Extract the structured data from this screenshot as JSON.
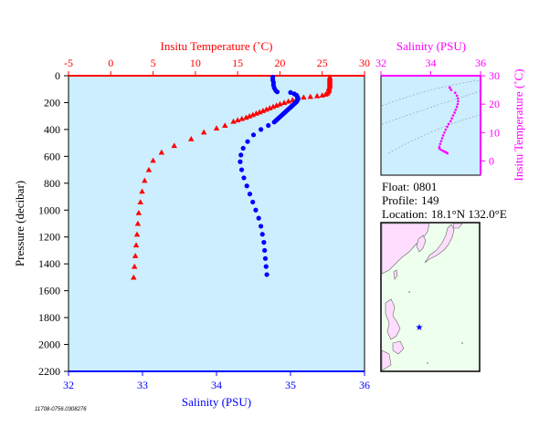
{
  "colors": {
    "temperature": "#ff0000",
    "salinity": "#0000ff",
    "inset": "#ff00ff",
    "plot_bg": "#cceeff",
    "map_sea": "#eeffee",
    "map_land": "#ffddff"
  },
  "info": {
    "float_label": "Float:",
    "float_value": "0801",
    "profile_label": "Profile:",
    "profile_value": "149",
    "location_label": "Location:",
    "location_value": "18.1°N  132.0°E"
  },
  "footnote": "11708-0756.0308276",
  "map": {
    "marker_icon": "star-icon"
  },
  "chart_data": [
    {
      "type": "scatter",
      "ylabel": "Pressure (decibar)",
      "ylim": [
        2200,
        0
      ],
      "yticks": [
        0,
        200,
        400,
        600,
        800,
        1000,
        1200,
        1400,
        1600,
        1800,
        2000,
        2200
      ],
      "top_axis": {
        "label": "Insitu Temperature (˚C)",
        "lim": [
          -5,
          30
        ],
        "ticks": [
          -5,
          0,
          5,
          10,
          15,
          20,
          25,
          30
        ]
      },
      "bottom_axis": {
        "label": "Salinity (PSU)",
        "lim": [
          32,
          36
        ],
        "ticks": [
          32,
          33,
          34,
          35,
          36
        ]
      },
      "grid": false,
      "series": [
        {
          "marker": "triangle",
          "axis": "top",
          "points": [
            [
              25.9,
              10
            ],
            [
              25.9,
              20
            ],
            [
              25.9,
              30
            ],
            [
              25.9,
              40
            ],
            [
              25.9,
              50
            ],
            [
              25.9,
              60
            ],
            [
              25.9,
              70
            ],
            [
              25.9,
              80
            ],
            [
              25.8,
              90
            ],
            [
              25.8,
              100
            ],
            [
              25.8,
              110
            ],
            [
              25.7,
              120
            ],
            [
              25.6,
              130
            ],
            [
              25.4,
              138
            ],
            [
              25.0,
              145
            ],
            [
              24.4,
              150
            ],
            [
              23.6,
              155
            ],
            [
              22.8,
              160
            ],
            [
              22.0,
              170
            ],
            [
              21.5,
              180
            ],
            [
              21.0,
              190
            ],
            [
              20.5,
              200
            ],
            [
              20.0,
              210
            ],
            [
              19.6,
              220
            ],
            [
              19.2,
              230
            ],
            [
              18.8,
              240
            ],
            [
              18.4,
              250
            ],
            [
              18.0,
              260
            ],
            [
              17.6,
              270
            ],
            [
              17.2,
              280
            ],
            [
              16.8,
              290
            ],
            [
              16.4,
              300
            ],
            [
              16.0,
              310
            ],
            [
              15.5,
              320
            ],
            [
              15.0,
              330
            ],
            [
              14.5,
              340
            ],
            [
              13.5,
              370
            ],
            [
              12.5,
              390
            ],
            [
              11.0,
              420
            ],
            [
              9.5,
              470
            ],
            [
              7.5,
              520
            ],
            [
              6.0,
              570
            ],
            [
              5.0,
              630
            ],
            [
              4.5,
              700
            ],
            [
              4.0,
              780
            ],
            [
              3.7,
              860
            ],
            [
              3.5,
              940
            ],
            [
              3.3,
              1020
            ],
            [
              3.2,
              1100
            ],
            [
              3.1,
              1180
            ],
            [
              3.0,
              1260
            ],
            [
              2.9,
              1340
            ],
            [
              2.8,
              1420
            ],
            [
              2.7,
              1500
            ]
          ]
        },
        {
          "marker": "circle",
          "axis": "bottom",
          "points": [
            [
              34.76,
              10
            ],
            [
              34.76,
              30
            ],
            [
              34.77,
              50
            ],
            [
              34.77,
              70
            ],
            [
              34.78,
              90
            ],
            [
              34.8,
              110
            ],
            [
              34.82,
              120
            ],
            [
              35.0,
              125
            ],
            [
              35.05,
              135
            ],
            [
              35.08,
              145
            ],
            [
              35.09,
              155
            ],
            [
              35.1,
              165
            ],
            [
              35.1,
              175
            ],
            [
              35.09,
              185
            ],
            [
              35.08,
              195
            ],
            [
              35.06,
              205
            ],
            [
              35.04,
              215
            ],
            [
              35.02,
              225
            ],
            [
              35.0,
              235
            ],
            [
              34.98,
              245
            ],
            [
              34.96,
              255
            ],
            [
              34.94,
              265
            ],
            [
              34.92,
              275
            ],
            [
              34.9,
              285
            ],
            [
              34.88,
              295
            ],
            [
              34.86,
              305
            ],
            [
              34.84,
              315
            ],
            [
              34.82,
              325
            ],
            [
              34.8,
              335
            ],
            [
              34.78,
              345
            ],
            [
              34.7,
              370
            ],
            [
              34.6,
              400
            ],
            [
              34.5,
              440
            ],
            [
              34.42,
              490
            ],
            [
              34.36,
              540
            ],
            [
              34.33,
              590
            ],
            [
              34.32,
              640
            ],
            [
              34.34,
              700
            ],
            [
              34.37,
              760
            ],
            [
              34.41,
              820
            ],
            [
              34.45,
              880
            ],
            [
              34.49,
              940
            ],
            [
              34.53,
              1000
            ],
            [
              34.57,
              1060
            ],
            [
              34.6,
              1120
            ],
            [
              34.62,
              1180
            ],
            [
              34.64,
              1240
            ],
            [
              34.65,
              1300
            ],
            [
              34.66,
              1360
            ],
            [
              34.67,
              1420
            ],
            [
              34.68,
              1480
            ]
          ]
        }
      ]
    },
    {
      "type": "scatter",
      "xlabel": "Salinity (PSU)",
      "ylabel": "Insitu Temperature (˚C)",
      "xlim": [
        32,
        36
      ],
      "ylim": [
        -5,
        30
      ],
      "xticks": [
        32,
        34,
        36
      ],
      "yticks": [
        0,
        10,
        20,
        30
      ],
      "grid": false,
      "points": [
        [
          34.76,
          25.9
        ],
        [
          34.77,
          25.7
        ],
        [
          34.82,
          25.0
        ],
        [
          34.98,
          24.0
        ],
        [
          35.05,
          23.0
        ],
        [
          35.09,
          22.0
        ],
        [
          35.1,
          21.0
        ],
        [
          35.08,
          20.0
        ],
        [
          35.05,
          19.0
        ],
        [
          35.0,
          18.0
        ],
        [
          34.96,
          17.0
        ],
        [
          34.9,
          16.0
        ],
        [
          34.85,
          15.0
        ],
        [
          34.8,
          14.0
        ],
        [
          34.72,
          13.0
        ],
        [
          34.66,
          12.0
        ],
        [
          34.6,
          11.0
        ],
        [
          34.55,
          10.0
        ],
        [
          34.5,
          9.0
        ],
        [
          34.46,
          8.0
        ],
        [
          34.42,
          7.0
        ],
        [
          34.38,
          6.0
        ],
        [
          34.35,
          5.0
        ],
        [
          34.34,
          4.5
        ],
        [
          34.4,
          4.0
        ],
        [
          34.48,
          3.6
        ],
        [
          34.55,
          3.3
        ],
        [
          34.6,
          3.1
        ],
        [
          34.64,
          2.9
        ],
        [
          34.67,
          2.7
        ]
      ]
    }
  ]
}
